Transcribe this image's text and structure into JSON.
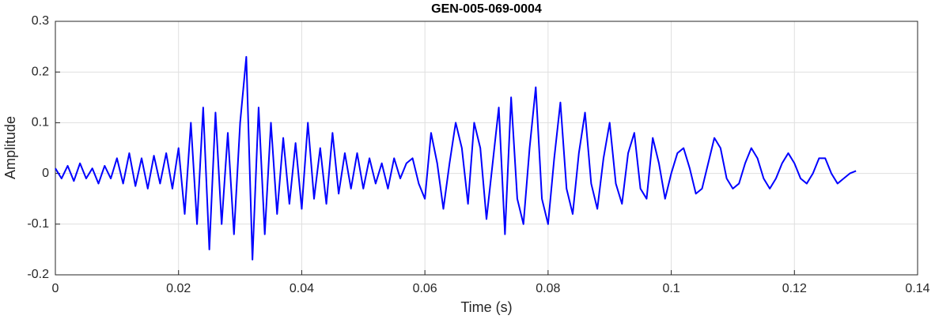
{
  "chart_data": {
    "type": "line",
    "title": "GEN-005-069-0004",
    "xlabel": "Time (s)",
    "ylabel": "Amplitude",
    "color": "#0000ff",
    "grid": true,
    "xlim": [
      0,
      0.14
    ],
    "xticks": [
      0,
      0.02,
      0.04,
      0.06,
      0.08,
      0.1,
      0.12,
      0.14
    ],
    "ylim": [
      -0.2,
      0.3
    ],
    "yticks": [
      -0.2,
      -0.1,
      0,
      0.1,
      0.2,
      0.3
    ],
    "x": [
      0,
      0.001,
      0.002,
      0.003,
      0.004,
      0.005,
      0.006,
      0.007,
      0.008,
      0.009,
      0.01,
      0.011,
      0.012,
      0.013,
      0.014,
      0.015,
      0.016,
      0.017,
      0.018,
      0.019,
      0.02,
      0.021,
      0.022,
      0.023,
      0.024,
      0.025,
      0.026,
      0.027,
      0.028,
      0.029,
      0.03,
      0.031,
      0.032,
      0.033,
      0.034,
      0.035,
      0.036,
      0.037,
      0.038,
      0.039,
      0.04,
      0.041,
      0.042,
      0.043,
      0.044,
      0.045,
      0.046,
      0.047,
      0.048,
      0.049,
      0.05,
      0.051,
      0.052,
      0.053,
      0.054,
      0.055,
      0.056,
      0.057,
      0.058,
      0.059,
      0.06,
      0.061,
      0.062,
      0.063,
      0.064,
      0.065,
      0.066,
      0.067,
      0.068,
      0.069,
      0.07,
      0.071,
      0.072,
      0.073,
      0.074,
      0.075,
      0.076,
      0.077,
      0.078,
      0.079,
      0.08,
      0.081,
      0.082,
      0.083,
      0.084,
      0.085,
      0.086,
      0.087,
      0.088,
      0.089,
      0.09,
      0.091,
      0.092,
      0.093,
      0.094,
      0.095,
      0.096,
      0.097,
      0.098,
      0.099,
      0.1,
      0.101,
      0.102,
      0.103,
      0.104,
      0.105,
      0.106,
      0.107,
      0.108,
      0.109,
      0.11,
      0.111,
      0.112,
      0.113,
      0.114,
      0.115,
      0.116,
      0.117,
      0.118,
      0.119,
      0.12,
      0.121,
      0.122,
      0.123,
      0.124,
      0.125,
      0.126,
      0.127,
      0.128,
      0.129,
      0.13
    ],
    "values": [
      0.01,
      -0.01,
      0.015,
      -0.015,
      0.02,
      -0.01,
      0.01,
      -0.02,
      0.015,
      -0.01,
      0.03,
      -0.02,
      0.04,
      -0.025,
      0.03,
      -0.03,
      0.035,
      -0.02,
      0.04,
      -0.03,
      0.05,
      -0.08,
      0.1,
      -0.1,
      0.13,
      -0.15,
      0.12,
      -0.1,
      0.08,
      -0.12,
      0.1,
      0.23,
      -0.17,
      0.13,
      -0.12,
      0.1,
      -0.08,
      0.07,
      -0.06,
      0.06,
      -0.07,
      0.1,
      -0.05,
      0.05,
      -0.06,
      0.08,
      -0.04,
      0.04,
      -0.03,
      0.04,
      -0.03,
      0.03,
      -0.02,
      0.02,
      -0.03,
      0.03,
      -0.01,
      0.02,
      0.03,
      -0.02,
      -0.05,
      0.08,
      0.02,
      -0.07,
      0.02,
      0.1,
      0.05,
      -0.06,
      0.1,
      0.05,
      -0.09,
      0.02,
      0.13,
      -0.12,
      0.15,
      -0.05,
      -0.1,
      0.05,
      0.17,
      -0.05,
      -0.1,
      0.03,
      0.14,
      -0.03,
      -0.08,
      0.04,
      0.12,
      -0.02,
      -0.07,
      0.03,
      0.1,
      -0.02,
      -0.06,
      0.04,
      0.08,
      -0.03,
      -0.05,
      0.07,
      0.02,
      -0.05,
      0,
      0.04,
      0.05,
      0.01,
      -0.04,
      -0.03,
      0.02,
      0.07,
      0.05,
      -0.01,
      -0.03,
      -0.02,
      0.02,
      0.05,
      0.03,
      -0.01,
      -0.03,
      -0.01,
      0.02,
      0.04,
      0.02,
      -0.01,
      -0.02,
      0,
      0.03,
      0.03,
      0,
      -0.02,
      -0.01,
      0,
      0.005
    ]
  }
}
